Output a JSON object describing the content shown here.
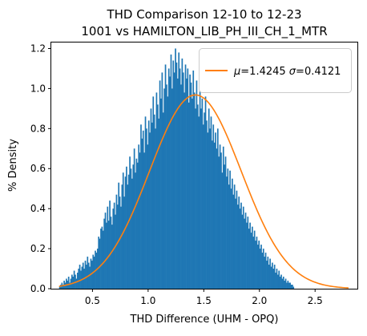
{
  "chart_data": {
    "type": "bar",
    "title_line1": "THD Comparison 12-10 to 12-23",
    "title_line2": "1001 vs HAMILTON_LIB_PH_III_CH_1_MTR",
    "xlabel": "THD Difference  (UHM - OPQ)",
    "ylabel": "% Density",
    "xlim": [
      0.13,
      2.88
    ],
    "ylim": [
      0,
      1.23
    ],
    "x_ticks": [
      0.5,
      1.0,
      1.5,
      2.0,
      2.5
    ],
    "x_tick_labels": [
      "0.5",
      "1.0",
      "1.5",
      "2.0",
      "2.5"
    ],
    "y_ticks": [
      0.0,
      0.2,
      0.4,
      0.6,
      0.8,
      1.0,
      1.2
    ],
    "y_tick_labels": [
      "0.0",
      "0.2",
      "0.4",
      "0.6",
      "0.8",
      "1.0",
      "1.2"
    ],
    "grid": false,
    "legend_position": "upper-right",
    "histogram": {
      "color": "#1f77b4",
      "bin_start": 0.2,
      "bin_width": 0.01,
      "densities": [
        0.01,
        0.02,
        0.03,
        0.02,
        0.04,
        0.03,
        0.05,
        0.04,
        0.06,
        0.03,
        0.05,
        0.07,
        0.06,
        0.09,
        0.07,
        0.05,
        0.08,
        0.1,
        0.12,
        0.09,
        0.11,
        0.13,
        0.1,
        0.14,
        0.12,
        0.16,
        0.13,
        0.11,
        0.15,
        0.14,
        0.17,
        0.16,
        0.19,
        0.18,
        0.2,
        0.26,
        0.25,
        0.3,
        0.31,
        0.29,
        0.35,
        0.38,
        0.33,
        0.41,
        0.34,
        0.44,
        0.36,
        0.32,
        0.4,
        0.43,
        0.37,
        0.47,
        0.42,
        0.53,
        0.46,
        0.41,
        0.52,
        0.58,
        0.46,
        0.56,
        0.61,
        0.52,
        0.57,
        0.66,
        0.6,
        0.55,
        0.62,
        0.7,
        0.58,
        0.65,
        0.63,
        0.72,
        0.68,
        0.82,
        0.75,
        0.79,
        0.68,
        0.86,
        0.8,
        0.72,
        0.84,
        0.78,
        0.9,
        0.83,
        0.96,
        0.87,
        0.8,
        0.98,
        0.92,
        0.85,
        1.04,
        0.95,
        1.08,
        0.88,
        1.0,
        1.12,
        1.02,
        0.96,
        1.1,
        1.06,
        1.17,
        1.0,
        1.14,
        1.08,
        1.2,
        1.13,
        1.05,
        1.18,
        1.1,
        1.02,
        1.15,
        1.08,
        0.98,
        1.12,
        1.05,
        1.1,
        0.93,
        1.07,
        1.03,
        0.95,
        1.09,
        0.98,
        0.9,
        1.04,
        0.92,
        0.86,
        0.99,
        0.9,
        0.95,
        0.82,
        0.88,
        0.96,
        0.84,
        0.78,
        0.9,
        0.8,
        0.86,
        0.74,
        0.82,
        0.73,
        0.78,
        0.7,
        0.8,
        0.66,
        0.72,
        0.68,
        0.58,
        0.71,
        0.62,
        0.66,
        0.56,
        0.6,
        0.52,
        0.59,
        0.5,
        0.55,
        0.47,
        0.52,
        0.45,
        0.49,
        0.42,
        0.46,
        0.4,
        0.43,
        0.37,
        0.41,
        0.35,
        0.38,
        0.33,
        0.36,
        0.3,
        0.33,
        0.28,
        0.31,
        0.26,
        0.29,
        0.24,
        0.26,
        0.22,
        0.24,
        0.2,
        0.22,
        0.18,
        0.2,
        0.16,
        0.18,
        0.14,
        0.16,
        0.12,
        0.15,
        0.11,
        0.13,
        0.1,
        0.12,
        0.08,
        0.1,
        0.07,
        0.09,
        0.06,
        0.07,
        0.05,
        0.06,
        0.04,
        0.05,
        0.03,
        0.04,
        0.03,
        0.03,
        0.02,
        0.02,
        0.01
      ]
    },
    "fit_curve": {
      "color": "#ff7f0e",
      "mu": 1.4245,
      "sigma": 0.4121,
      "x_range": [
        0.2,
        2.8
      ],
      "legend_prefix": "μ=",
      "legend_mu": "1.4245",
      "legend_mid": " σ=",
      "legend_sigma": "0.4121"
    }
  }
}
